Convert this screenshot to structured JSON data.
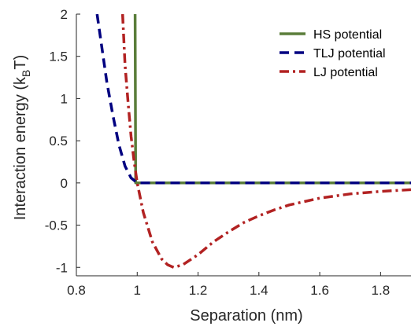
{
  "chart_data": {
    "type": "line",
    "xlabel": "Separation (nm)",
    "ylabel": "Interaction energy (k",
    "ylabel_sub": "B",
    "ylabel_tail": "T)",
    "xlim": [
      0.8,
      1.9
    ],
    "ylim": [
      -1.1,
      2
    ],
    "xticks": [
      0.8,
      1,
      1.2,
      1.4,
      1.6,
      1.8
    ],
    "xtick_labels": [
      "0.8",
      "1",
      "1.2",
      "1.4",
      "1.6",
      "1.8"
    ],
    "yticks": [
      -1,
      -0.5,
      0,
      0.5,
      1,
      1.5,
      2
    ],
    "ytick_labels": [
      "-1",
      "-0.5",
      "0",
      "0.5",
      "1",
      "1.5",
      "2"
    ],
    "grid": false,
    "legend_position": "top-right",
    "series": [
      {
        "name": "HS potential",
        "color": "#5a7d3a",
        "dash": "solid",
        "points": [
          [
            0.993,
            2.0
          ],
          [
            0.995,
            0.0
          ],
          [
            1.9,
            0.0
          ]
        ]
      },
      {
        "name": "TLJ potential",
        "color": "#000080",
        "dash": "dashed",
        "points": [
          [
            0.868,
            2.0
          ],
          [
            0.88,
            1.7
          ],
          [
            0.9,
            1.2
          ],
          [
            0.92,
            0.8
          ],
          [
            0.94,
            0.45
          ],
          [
            0.96,
            0.2
          ],
          [
            0.98,
            0.06
          ],
          [
            1.0,
            0.0
          ],
          [
            1.9,
            0.0
          ]
        ]
      },
      {
        "name": "LJ potential",
        "color": "#b22222",
        "dash": "dashdot",
        "points": [
          [
            0.952,
            2.0
          ],
          [
            0.96,
            1.4
          ],
          [
            0.97,
            0.95
          ],
          [
            0.98,
            0.55
          ],
          [
            0.99,
            0.25
          ],
          [
            1.0,
            0.0
          ],
          [
            1.02,
            -0.35
          ],
          [
            1.05,
            -0.7
          ],
          [
            1.08,
            -0.9
          ],
          [
            1.1,
            -0.97
          ],
          [
            1.12,
            -1.0
          ],
          [
            1.15,
            -0.97
          ],
          [
            1.2,
            -0.85
          ],
          [
            1.25,
            -0.7
          ],
          [
            1.3,
            -0.58
          ],
          [
            1.35,
            -0.47
          ],
          [
            1.4,
            -0.39
          ],
          [
            1.45,
            -0.32
          ],
          [
            1.5,
            -0.26
          ],
          [
            1.55,
            -0.22
          ],
          [
            1.6,
            -0.18
          ],
          [
            1.7,
            -0.13
          ],
          [
            1.8,
            -0.1
          ],
          [
            1.9,
            -0.08
          ]
        ]
      }
    ]
  }
}
